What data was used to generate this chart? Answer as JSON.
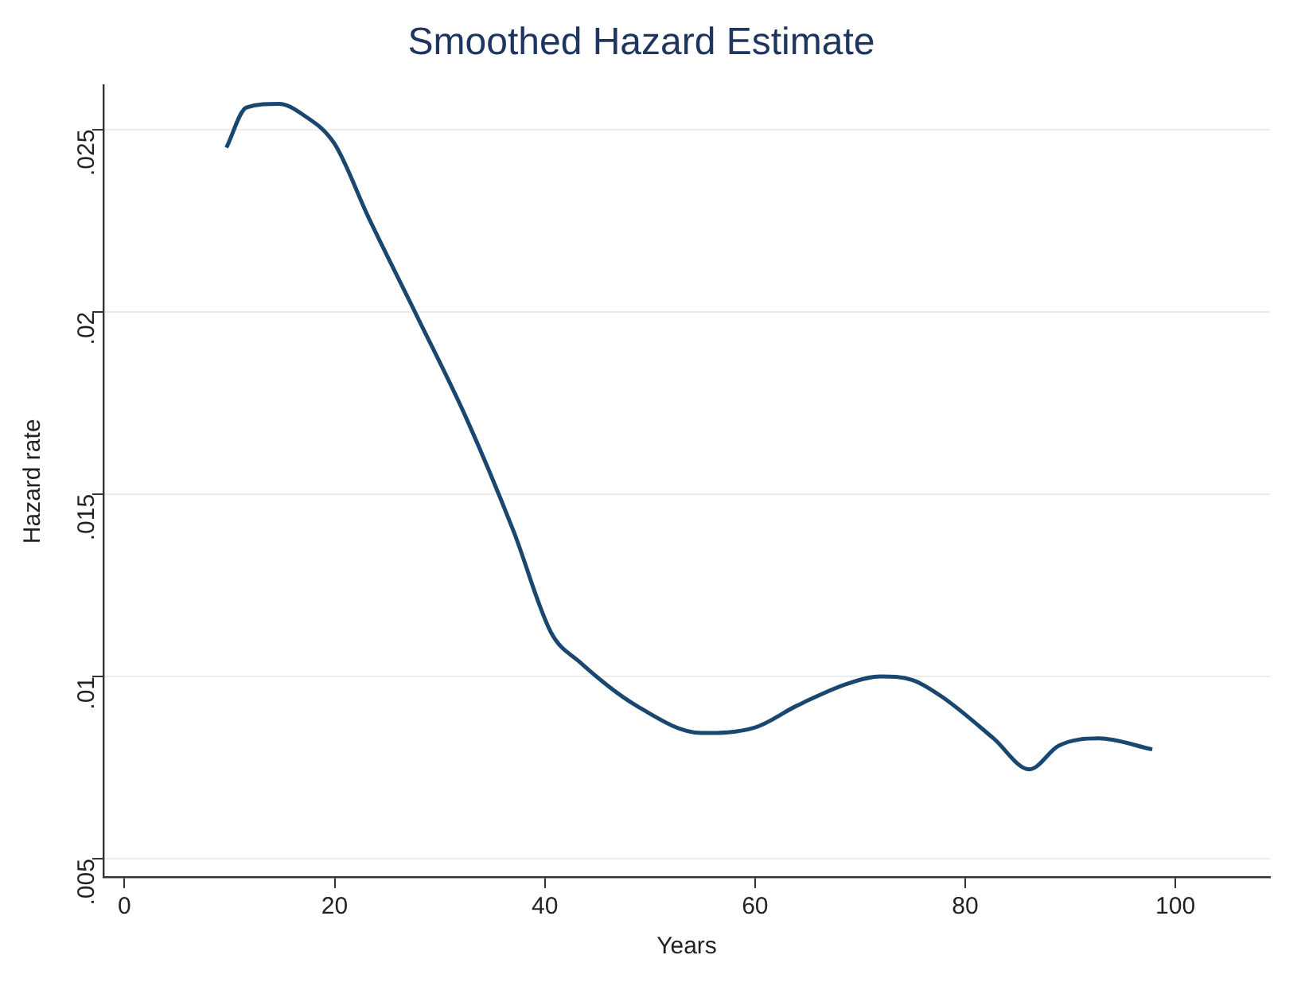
{
  "chart_data": {
    "type": "line",
    "title": "Smoothed Hazard Estimate",
    "xlabel": "Years",
    "ylabel": "Hazard rate",
    "x": [
      9.7,
      11.6,
      14.7,
      17,
      20,
      23.2,
      27.8,
      32.5,
      37,
      40.6,
      43.3,
      48.7,
      54.9,
      60,
      64,
      68.8,
      71.9,
      75,
      78,
      82.7,
      86.1,
      88.9,
      92.7,
      97.8
    ],
    "series": [
      {
        "color": "#1a476f",
        "values": [
          0.0245,
          0.0256,
          0.0257,
          0.0254,
          0.0246,
          0.0226,
          0.0199,
          0.0171,
          0.014,
          0.0112,
          0.0104,
          0.0092,
          0.00845,
          0.0086,
          0.0092,
          0.0098,
          0.01,
          0.0099,
          0.0094,
          0.0083,
          0.00745,
          0.0081,
          0.0083,
          0.008
        ]
      }
    ],
    "xlim": [
      -2,
      109
    ],
    "xticks": [
      0,
      20,
      40,
      60,
      80,
      100
    ],
    "ylim": [
      0.0045,
      0.0262
    ],
    "yticks": [
      {
        "value": 0.005,
        "label": ".005"
      },
      {
        "value": 0.01,
        "label": ".01"
      },
      {
        "value": 0.015,
        "label": ".015"
      },
      {
        "value": 0.02,
        "label": ".02"
      },
      {
        "value": 0.025,
        "label": ".025"
      }
    ],
    "grid": "y",
    "legend": false,
    "marker": "none",
    "line_style": "solid"
  }
}
